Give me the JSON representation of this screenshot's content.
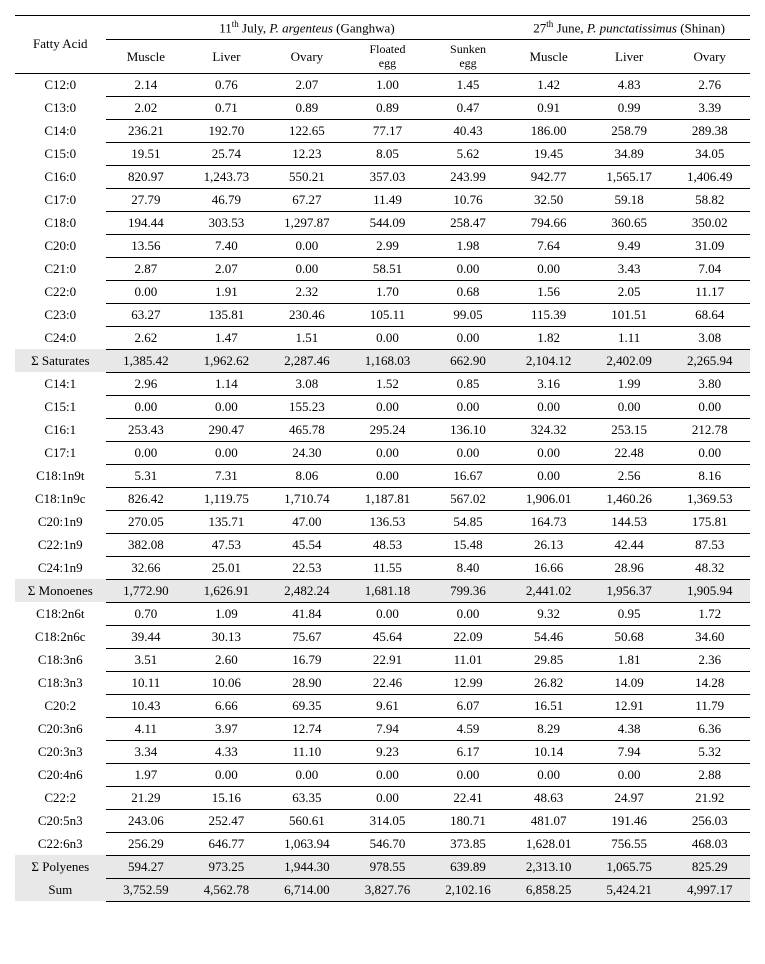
{
  "header": {
    "rowLabel": "Fatty Acid",
    "group1_html": "11<sup>th</sup> July, <span class=\"italic\">P. argenteus</span> (Ganghwa)",
    "group2_html": "27<sup>th</sup> June, <span class=\"italic\">P. punctatissimus</span> (Shinan)",
    "cols1": [
      "Muscle",
      "Liver",
      "Ovary",
      "Floated egg",
      "Sunken egg"
    ],
    "cols2": [
      "Muscle",
      "Liver",
      "Ovary"
    ]
  },
  "rows": [
    {
      "label": "C12:0",
      "v": [
        "2.14",
        "0.76",
        "2.07",
        "1.00",
        "1.45",
        "1.42",
        "4.83",
        "2.76"
      ]
    },
    {
      "label": "C13:0",
      "v": [
        "2.02",
        "0.71",
        "0.89",
        "0.89",
        "0.47",
        "0.91",
        "0.99",
        "3.39"
      ]
    },
    {
      "label": "C14:0",
      "v": [
        "236.21",
        "192.70",
        "122.65",
        "77.17",
        "40.43",
        "186.00",
        "258.79",
        "289.38"
      ]
    },
    {
      "label": "C15:0",
      "v": [
        "19.51",
        "25.74",
        "12.23",
        "8.05",
        "5.62",
        "19.45",
        "34.89",
        "34.05"
      ]
    },
    {
      "label": "C16:0",
      "v": [
        "820.97",
        "1,243.73",
        "550.21",
        "357.03",
        "243.99",
        "942.77",
        "1,565.17",
        "1,406.49"
      ]
    },
    {
      "label": "C17:0",
      "v": [
        "27.79",
        "46.79",
        "67.27",
        "11.49",
        "10.76",
        "32.50",
        "59.18",
        "58.82"
      ]
    },
    {
      "label": "C18:0",
      "v": [
        "194.44",
        "303.53",
        "1,297.87",
        "544.09",
        "258.47",
        "794.66",
        "360.65",
        "350.02"
      ]
    },
    {
      "label": "C20:0",
      "v": [
        "13.56",
        "7.40",
        "0.00",
        "2.99",
        "1.98",
        "7.64",
        "9.49",
        "31.09"
      ]
    },
    {
      "label": "C21:0",
      "v": [
        "2.87",
        "2.07",
        "0.00",
        "58.51",
        "0.00",
        "0.00",
        "3.43",
        "7.04"
      ]
    },
    {
      "label": "C22:0",
      "v": [
        "0.00",
        "1.91",
        "2.32",
        "1.70",
        "0.68",
        "1.56",
        "2.05",
        "11.17"
      ]
    },
    {
      "label": "C23:0",
      "v": [
        "63.27",
        "135.81",
        "230.46",
        "105.11",
        "99.05",
        "115.39",
        "101.51",
        "68.64"
      ]
    },
    {
      "label": "C24:0",
      "v": [
        "2.62",
        "1.47",
        "1.51",
        "0.00",
        "0.00",
        "1.82",
        "1.11",
        "3.08"
      ]
    },
    {
      "label": "Σ Saturates",
      "shade": true,
      "v": [
        "1,385.42",
        "1,962.62",
        "2,287.46",
        "1,168.03",
        "662.90",
        "2,104.12",
        "2,402.09",
        "2,265.94"
      ]
    },
    {
      "label": "C14:1",
      "v": [
        "2.96",
        "1.14",
        "3.08",
        "1.52",
        "0.85",
        "3.16",
        "1.99",
        "3.80"
      ]
    },
    {
      "label": "C15:1",
      "v": [
        "0.00",
        "0.00",
        "155.23",
        "0.00",
        "0.00",
        "0.00",
        "0.00",
        "0.00"
      ]
    },
    {
      "label": "C16:1",
      "v": [
        "253.43",
        "290.47",
        "465.78",
        "295.24",
        "136.10",
        "324.32",
        "253.15",
        "212.78"
      ]
    },
    {
      "label": "C17:1",
      "v": [
        "0.00",
        "0.00",
        "24.30",
        "0.00",
        "0.00",
        "0.00",
        "22.48",
        "0.00"
      ]
    },
    {
      "label": "C18:1n9t",
      "v": [
        "5.31",
        "7.31",
        "8.06",
        "0.00",
        "16.67",
        "0.00",
        "2.56",
        "8.16"
      ]
    },
    {
      "label": "C18:1n9c",
      "v": [
        "826.42",
        "1,119.75",
        "1,710.74",
        "1,187.81",
        "567.02",
        "1,906.01",
        "1,460.26",
        "1,369.53"
      ]
    },
    {
      "label": "C20:1n9",
      "v": [
        "270.05",
        "135.71",
        "47.00",
        "136.53",
        "54.85",
        "164.73",
        "144.53",
        "175.81"
      ]
    },
    {
      "label": "C22:1n9",
      "v": [
        "382.08",
        "47.53",
        "45.54",
        "48.53",
        "15.48",
        "26.13",
        "42.44",
        "87.53"
      ]
    },
    {
      "label": "C24:1n9",
      "v": [
        "32.66",
        "25.01",
        "22.53",
        "11.55",
        "8.40",
        "16.66",
        "28.96",
        "48.32"
      ]
    },
    {
      "label": "Σ Monoenes",
      "shade": true,
      "v": [
        "1,772.90",
        "1,626.91",
        "2,482.24",
        "1,681.18",
        "799.36",
        "2,441.02",
        "1,956.37",
        "1,905.94"
      ]
    },
    {
      "label": "C18:2n6t",
      "v": [
        "0.70",
        "1.09",
        "41.84",
        "0.00",
        "0.00",
        "9.32",
        "0.95",
        "1.72"
      ]
    },
    {
      "label": "C18:2n6c",
      "v": [
        "39.44",
        "30.13",
        "75.67",
        "45.64",
        "22.09",
        "54.46",
        "50.68",
        "34.60"
      ]
    },
    {
      "label": "C18:3n6",
      "v": [
        "3.51",
        "2.60",
        "16.79",
        "22.91",
        "11.01",
        "29.85",
        "1.81",
        "2.36"
      ]
    },
    {
      "label": "C18:3n3",
      "v": [
        "10.11",
        "10.06",
        "28.90",
        "22.46",
        "12.99",
        "26.82",
        "14.09",
        "14.28"
      ]
    },
    {
      "label": "C20:2",
      "v": [
        "10.43",
        "6.66",
        "69.35",
        "9.61",
        "6.07",
        "16.51",
        "12.91",
        "11.79"
      ]
    },
    {
      "label": "C20:3n6",
      "v": [
        "4.11",
        "3.97",
        "12.74",
        "7.94",
        "4.59",
        "8.29",
        "4.38",
        "6.36"
      ]
    },
    {
      "label": "C20:3n3",
      "v": [
        "3.34",
        "4.33",
        "11.10",
        "9.23",
        "6.17",
        "10.14",
        "7.94",
        "5.32"
      ]
    },
    {
      "label": "C20:4n6",
      "v": [
        "1.97",
        "0.00",
        "0.00",
        "0.00",
        "0.00",
        "0.00",
        "0.00",
        "2.88"
      ]
    },
    {
      "label": "C22:2",
      "v": [
        "21.29",
        "15.16",
        "63.35",
        "0.00",
        "22.41",
        "48.63",
        "24.97",
        "21.92"
      ]
    },
    {
      "label": "C20:5n3",
      "v": [
        "243.06",
        "252.47",
        "560.61",
        "314.05",
        "180.71",
        "481.07",
        "191.46",
        "256.03"
      ]
    },
    {
      "label": "C22:6n3",
      "v": [
        "256.29",
        "646.77",
        "1,063.94",
        "546.70",
        "373.85",
        "1,628.01",
        "756.55",
        "468.03"
      ]
    },
    {
      "label": "Σ Polyenes",
      "shade": true,
      "v": [
        "594.27",
        "973.25",
        "1,944.30",
        "978.55",
        "639.89",
        "2,313.10",
        "1,065.75",
        "825.29"
      ]
    },
    {
      "label": "Sum",
      "shade": true,
      "sum": true,
      "v": [
        "3,752.59",
        "4,562.78",
        "6,714.00",
        "3,827.76",
        "2,102.16",
        "6,858.25",
        "5,424.21",
        "4,997.17"
      ]
    }
  ]
}
